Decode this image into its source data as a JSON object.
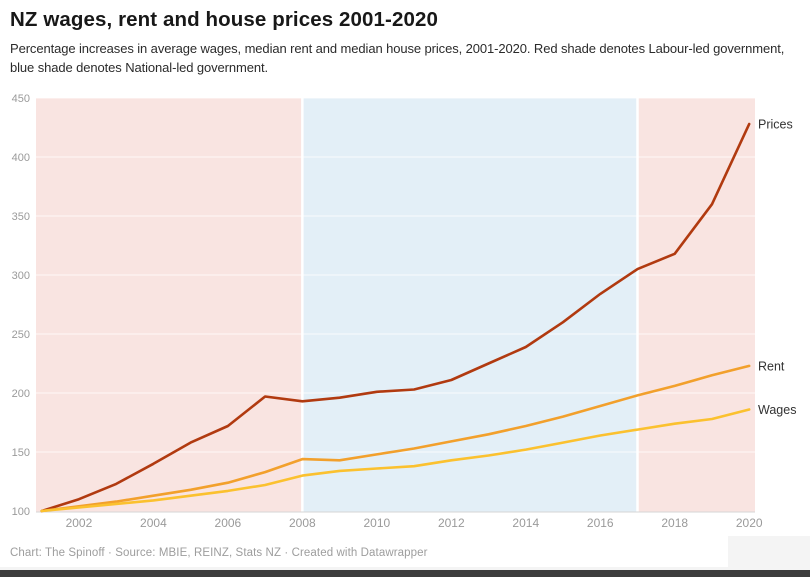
{
  "header": {
    "title": "NZ wages, rent and house prices 2001-2020",
    "description": "Percentage increases in average wages, median rent and median house prices, 2001-2020. Red shade denotes Labour-led government, blue shade denotes National-led government."
  },
  "footer": {
    "attribution": "Chart: The Spinoff · Source: MBIE, REINZ, Stats NZ · Created with Datawrapper"
  },
  "chart_data": {
    "type": "line",
    "title": "NZ wages, rent and house prices 2001-2020",
    "x": [
      2001,
      2002,
      2003,
      2004,
      2005,
      2006,
      2007,
      2008,
      2009,
      2010,
      2011,
      2012,
      2013,
      2014,
      2015,
      2016,
      2017,
      2018,
      2019,
      2020
    ],
    "series": [
      {
        "name": "Prices",
        "color": "#b13a10",
        "values": [
          100,
          110,
          123,
          140,
          158,
          172,
          197,
          193,
          196,
          201,
          203,
          211,
          225,
          239,
          260,
          284,
          305,
          318,
          360,
          428
        ]
      },
      {
        "name": "Rent",
        "color": "#f2a02c",
        "values": [
          100,
          104,
          108,
          113,
          118,
          124,
          133,
          144,
          143,
          148,
          153,
          159,
          165,
          172,
          180,
          189,
          198,
          206,
          215,
          223
        ]
      },
      {
        "name": "Wages",
        "color": "#fbc12f",
        "values": [
          100,
          103,
          106,
          109,
          113,
          117,
          122,
          130,
          134,
          136,
          138,
          143,
          147,
          152,
          158,
          164,
          169,
          174,
          178,
          186
        ]
      }
    ],
    "bands": [
      {
        "government": "Labour-led",
        "from": 2001,
        "to": 2008,
        "color": "#f9e4e1"
      },
      {
        "government": "National-led",
        "from": 2008,
        "to": 2017,
        "color": "#e3eff7"
      },
      {
        "government": "Labour-led",
        "from": 2017,
        "to": 2020,
        "color": "#f9e4e1"
      }
    ],
    "y_ticks": [
      100,
      150,
      200,
      250,
      300,
      350,
      400,
      450
    ],
    "x_ticks": [
      2002,
      2004,
      2006,
      2008,
      2010,
      2012,
      2014,
      2016,
      2018,
      2020
    ],
    "ylim": [
      100,
      450
    ],
    "xlim": [
      2001,
      2020
    ],
    "grid": true,
    "legend_position": "line-end-labels",
    "axis_label_color": "#9a9a9a",
    "series_label_color": "#333333"
  }
}
